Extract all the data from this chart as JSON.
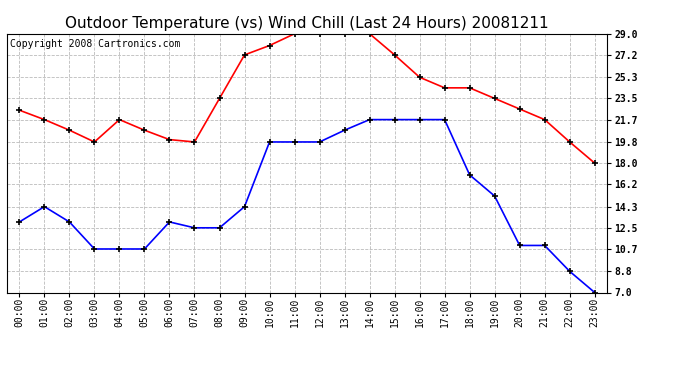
{
  "title": "Outdoor Temperature (vs) Wind Chill (Last 24 Hours) 20081211",
  "copyright": "Copyright 2008 Cartronics.com",
  "hours": [
    "00:00",
    "01:00",
    "02:00",
    "03:00",
    "04:00",
    "05:00",
    "06:00",
    "07:00",
    "08:00",
    "09:00",
    "10:00",
    "11:00",
    "12:00",
    "13:00",
    "14:00",
    "15:00",
    "16:00",
    "17:00",
    "18:00",
    "19:00",
    "20:00",
    "21:00",
    "22:00",
    "23:00"
  ],
  "temp": [
    22.5,
    21.7,
    20.8,
    19.8,
    21.7,
    20.8,
    20.0,
    19.8,
    23.5,
    27.2,
    28.0,
    29.0,
    29.0,
    29.0,
    29.0,
    27.2,
    25.3,
    24.4,
    24.4,
    23.5,
    22.6,
    21.7,
    19.8,
    18.0
  ],
  "windchill": [
    13.0,
    14.3,
    13.0,
    10.7,
    10.7,
    10.7,
    13.0,
    12.5,
    12.5,
    14.3,
    19.8,
    19.8,
    19.8,
    20.8,
    21.7,
    21.7,
    21.7,
    21.7,
    17.0,
    15.2,
    11.0,
    11.0,
    8.8,
    7.0
  ],
  "temp_color": "#ff0000",
  "windchill_color": "#0000ff",
  "bg_color": "#ffffff",
  "plot_bg_color": "#ffffff",
  "grid_color": "#bbbbbb",
  "ylim": [
    7.0,
    29.0
  ],
  "yticks": [
    7.0,
    8.8,
    10.7,
    12.5,
    14.3,
    16.2,
    18.0,
    19.8,
    21.7,
    23.5,
    25.3,
    27.2,
    29.0
  ],
  "title_fontsize": 11,
  "copyright_fontsize": 7,
  "tick_fontsize": 7,
  "marker": "+",
  "markersize": 5,
  "markeredgewidth": 1.2,
  "linewidth": 1.2
}
